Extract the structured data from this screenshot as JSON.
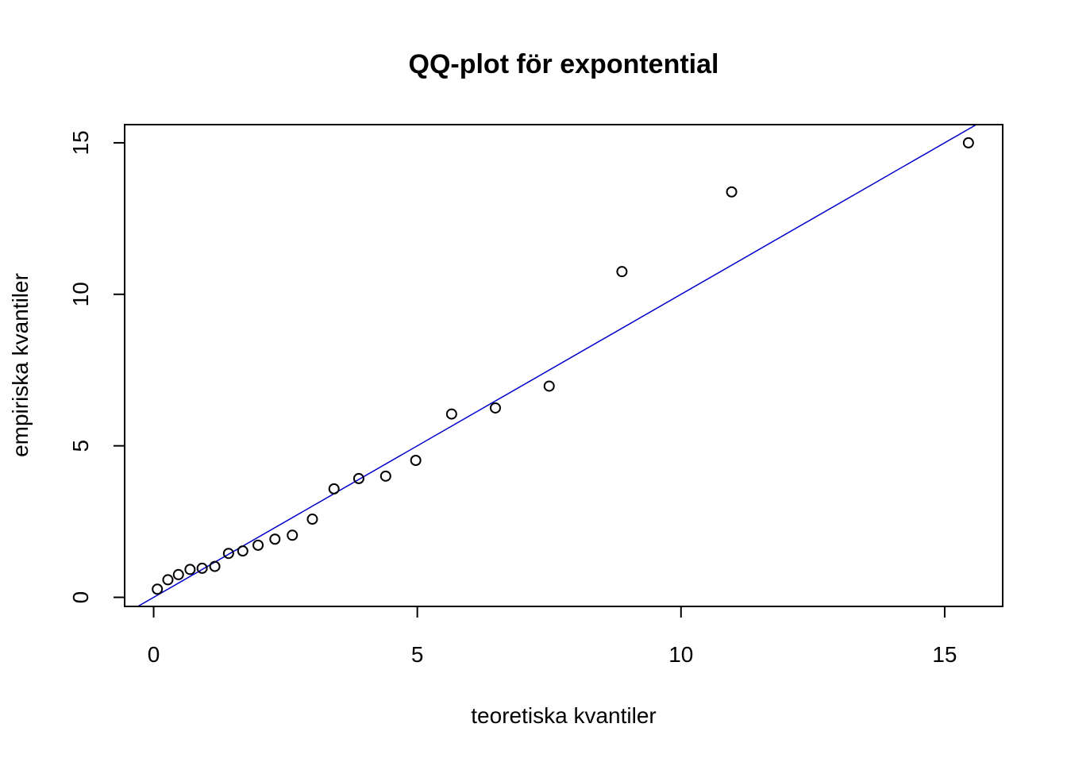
{
  "chart_data": {
    "type": "scatter",
    "title": "QQ-plot för expontential",
    "xlabel": "teoretiska kvantiler",
    "ylabel": "empiriska kvantiler",
    "xlim": [
      -0.55,
      16.1
    ],
    "ylim": [
      -0.3,
      15.6
    ],
    "x_ticks": [
      0,
      5,
      10,
      15
    ],
    "x_tick_labels": [
      "0",
      "5",
      "10",
      "15"
    ],
    "y_ticks": [
      0,
      5,
      10,
      15
    ],
    "y_tick_labels": [
      "0",
      "5",
      "10",
      "15"
    ],
    "grid": false,
    "legend": "none",
    "point_color": "#000000",
    "line_color": "#0000CD",
    "x": [
      0.07,
      0.27,
      0.47,
      0.69,
      0.92,
      1.16,
      1.42,
      1.69,
      1.98,
      2.3,
      2.63,
      3.01,
      3.42,
      3.89,
      4.4,
      4.97,
      5.65,
      6.48,
      7.5,
      8.88,
      10.96,
      15.45
    ],
    "y": [
      0.27,
      0.58,
      0.75,
      0.92,
      0.96,
      1.02,
      1.45,
      1.53,
      1.72,
      1.92,
      2.05,
      2.58,
      3.58,
      3.92,
      4.0,
      4.52,
      6.05,
      6.25,
      6.97,
      10.75,
      13.38,
      15.0
    ],
    "reference_line": {
      "intercept": 0,
      "slope": 1
    }
  }
}
